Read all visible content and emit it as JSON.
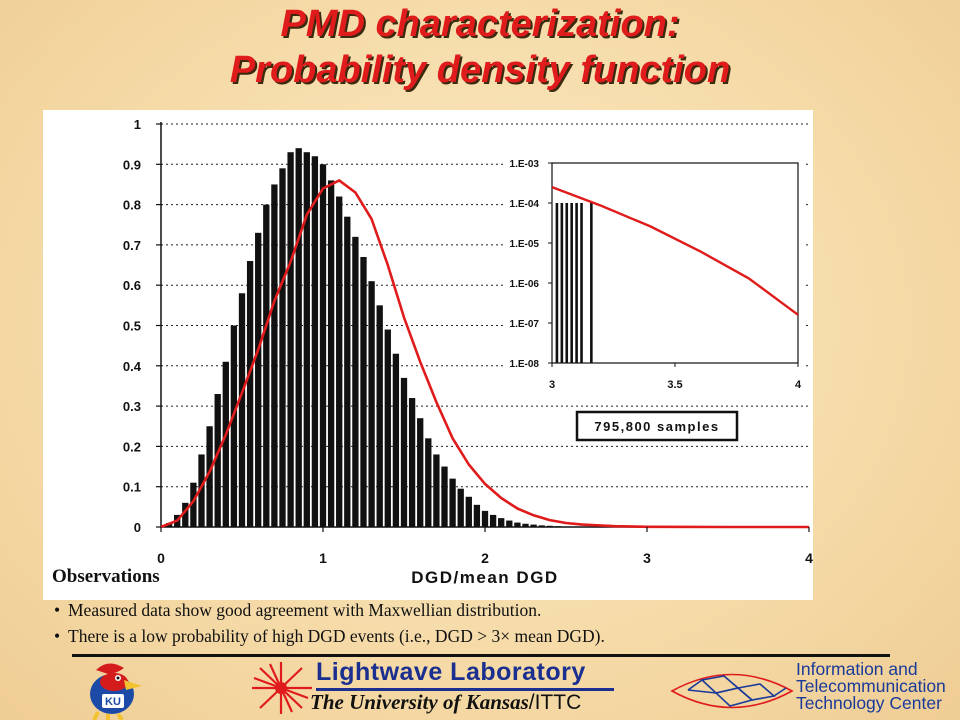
{
  "title": {
    "line1": "PMD characterization:",
    "line2": "Probability density function"
  },
  "observations": {
    "heading": "Observations",
    "items": [
      "Measured data show good agreement with Maxwellian distribution.",
      "There is a low probability of high DGD events (i.e., DGD > 3× mean DGD)."
    ]
  },
  "footer": {
    "lightwave_label": "Lightwave Laboratory",
    "university_label": "The University of Kansas",
    "ittc_suffix": "/ITTC",
    "ittc_label_lines": [
      "Information and",
      "Telecommunication",
      "Technology Center"
    ],
    "jayhawk_badge": "KU"
  },
  "colors": {
    "curve": "#e01b1b",
    "bars": "#111111",
    "title": "#e01b1b",
    "logo_blue": "#1a2f8f"
  },
  "chart_data": [
    {
      "type": "bar",
      "overlay": "Maxwellian fit (line)",
      "xlabel": "DGD/mean DGD",
      "ylabel": "",
      "xlim": [
        0,
        4
      ],
      "ylim": [
        0,
        1
      ],
      "xticks": [
        "0",
        "1",
        "2",
        "3",
        "4"
      ],
      "yticks": [
        "0",
        "0.1",
        "0.2",
        "0.3",
        "0.4",
        "0.5",
        "0.6",
        "0.7",
        "0.8",
        "0.9",
        "1"
      ],
      "grid": "horizontal dotted",
      "histogram": {
        "x": [
          0.0,
          0.05,
          0.1,
          0.15,
          0.2,
          0.25,
          0.3,
          0.35,
          0.4,
          0.45,
          0.5,
          0.55,
          0.6,
          0.65,
          0.7,
          0.75,
          0.8,
          0.85,
          0.9,
          0.95,
          1.0,
          1.05,
          1.1,
          1.15,
          1.2,
          1.25,
          1.3,
          1.35,
          1.4,
          1.45,
          1.5,
          1.55,
          1.6,
          1.65,
          1.7,
          1.75,
          1.8,
          1.85,
          1.9,
          1.95,
          2.0,
          2.05,
          2.1,
          2.15,
          2.2,
          2.25,
          2.3,
          2.35,
          2.4,
          2.45,
          2.5,
          2.55,
          2.6,
          2.65,
          2.7
        ],
        "values": [
          0.0,
          0.01,
          0.03,
          0.06,
          0.11,
          0.18,
          0.25,
          0.33,
          0.41,
          0.5,
          0.58,
          0.66,
          0.73,
          0.8,
          0.85,
          0.89,
          0.93,
          0.94,
          0.93,
          0.92,
          0.9,
          0.86,
          0.82,
          0.77,
          0.72,
          0.67,
          0.61,
          0.55,
          0.49,
          0.43,
          0.37,
          0.32,
          0.27,
          0.22,
          0.18,
          0.15,
          0.12,
          0.095,
          0.075,
          0.055,
          0.04,
          0.03,
          0.022,
          0.016,
          0.011,
          0.008,
          0.006,
          0.004,
          0.003,
          0.002,
          0.001,
          0.001,
          0.0005,
          0.0003,
          0.0002
        ]
      },
      "fit": {
        "name": "Maxwellian",
        "x": [
          0.0,
          0.1,
          0.2,
          0.3,
          0.4,
          0.5,
          0.6,
          0.7,
          0.8,
          0.9,
          1.0,
          1.1,
          1.2,
          1.3,
          1.4,
          1.5,
          1.6,
          1.7,
          1.8,
          1.9,
          2.0,
          2.1,
          2.2,
          2.3,
          2.4,
          2.5,
          2.6,
          2.8,
          3.0,
          3.5,
          4.0
        ],
        "values": [
          0.0,
          0.016,
          0.064,
          0.137,
          0.229,
          0.333,
          0.44,
          0.561,
          0.658,
          0.775,
          0.84,
          0.86,
          0.83,
          0.764,
          0.65,
          0.52,
          0.41,
          0.31,
          0.22,
          0.155,
          0.107,
          0.072,
          0.046,
          0.029,
          0.017,
          0.01,
          0.006,
          0.0019,
          0.0005,
          0.0,
          0.0
        ]
      }
    },
    {
      "type": "bar",
      "overlay": "Maxwellian fit (line)",
      "scale": "log-y",
      "xlim": [
        3,
        4
      ],
      "xticks": [
        "3",
        "3.5",
        "4"
      ],
      "yticks": [
        "1.E-08",
        "1.E-07",
        "1.E-06",
        "1.E-05",
        "1.E-04",
        "1.E-03"
      ],
      "ylim": [
        1e-08,
        0.001
      ],
      "histogram": {
        "x": [
          3.02,
          3.04,
          3.06,
          3.08,
          3.1,
          3.12,
          3.16
        ],
        "values": [
          0.0001,
          0.0001,
          0.0001,
          0.0001,
          0.0001,
          0.0001,
          0.0001
        ]
      },
      "fit": {
        "x": [
          3.0,
          3.2,
          3.4,
          3.6,
          3.8,
          4.0
        ],
        "values": [
          0.00025,
          8.5e-05,
          2.6e-05,
          6.3e-06,
          1.3e-06,
          1.6e-07
        ]
      },
      "annotation": "795,800 samples"
    }
  ]
}
